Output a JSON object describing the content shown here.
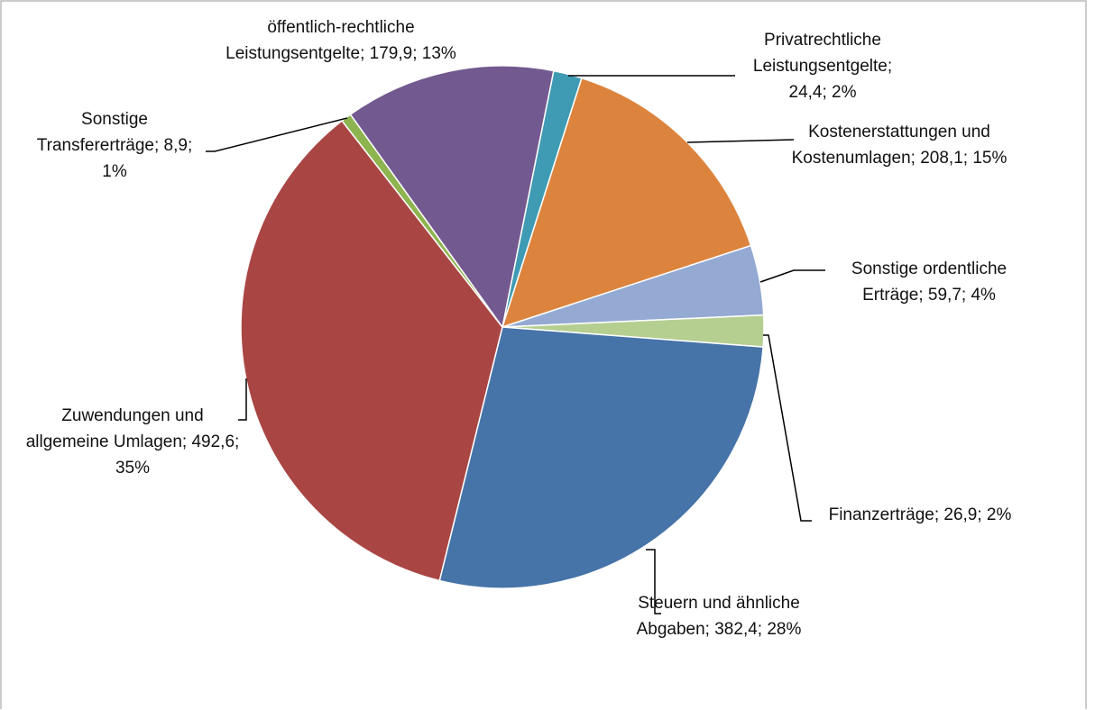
{
  "chart_data": {
    "type": "pie",
    "values": [
      24.4,
      208.1,
      59.7,
      26.9,
      382.4,
      492.6,
      8.9,
      179.9
    ],
    "value_labels": [
      "Privatrechtliche Leistungsentgelte; 24,4; 2%",
      "Kostenerstattungen und Kostenumlagen; 208,1; 15%",
      "Sonstige ordentliche Erträge; 59,7; 4%",
      "Finanzerträge; 26,9; 2%",
      "Steuern und ähnliche Abgaben; 382,4; 28%",
      "Zuwendungen und allgemeine Umlagen; 492,6; 35%",
      "Sonstige Transfererträge; 8,9; 1%",
      "öffentlich-rechtliche Leistungsentgelte; 179,9; 13%"
    ],
    "colors": [
      "#3f9bb3",
      "#dc843e",
      "#94aad3",
      "#b5cf91",
      "#4673a8",
      "#a94644",
      "#8db44f",
      "#72598f"
    ]
  }
}
